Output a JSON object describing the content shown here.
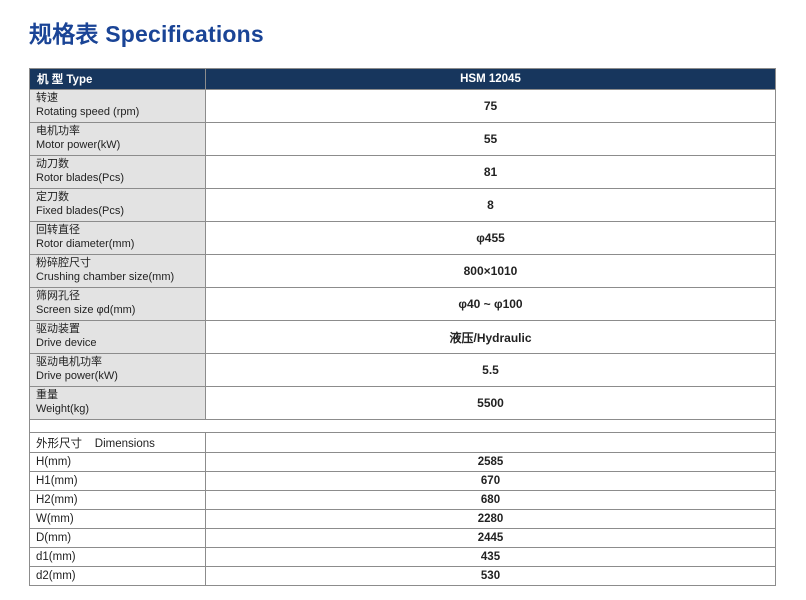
{
  "title": "规格表 Specifications",
  "colors": {
    "title_color": "#1a4496",
    "header_bg": "#17365d",
    "label_bg": "#e3e3e3",
    "border_color": "#8c8c8c"
  },
  "table": {
    "type_header": "机  型 Type",
    "model": "HSM 12045",
    "spec_rows": [
      {
        "label_cn": "转速",
        "label_en": "Rotating speed (rpm)",
        "value": "75"
      },
      {
        "label_cn": "电机功率",
        "label_en": "Motor power(kW)",
        "value": "55"
      },
      {
        "label_cn": "动刀数",
        "label_en": "Rotor blades(Pcs)",
        "value": "81"
      },
      {
        "label_cn": "定刀数",
        "label_en": "Fixed blades(Pcs)",
        "value": "8"
      },
      {
        "label_cn": "回转直径",
        "label_en": "Rotor diameter(mm)",
        "value": "φ455"
      },
      {
        "label_cn": "粉碎腔尺寸",
        "label_en": "Crushing chamber size(mm)",
        "value": "800×1010"
      },
      {
        "label_cn": "筛网孔径",
        "label_en": "Screen size φd(mm)",
        "value": "φ40 ~ φ100"
      },
      {
        "label_cn": "驱动装置",
        "label_en": "Drive device",
        "value": "液压/Hydraulic"
      },
      {
        "label_cn": "驱动电机功率",
        "label_en": "Drive power(kW)",
        "value": "5.5"
      },
      {
        "label_cn": "重量",
        "label_en": "Weight(kg)",
        "value": "5500"
      }
    ],
    "dimensions_header": "外形尺寸    Dimensions",
    "dimension_rows": [
      {
        "label": "H(mm)",
        "value": "2585"
      },
      {
        "label": "H1(mm)",
        "value": "670"
      },
      {
        "label": "H2(mm)",
        "value": "680"
      },
      {
        "label": "W(mm)",
        "value": "2280"
      },
      {
        "label": "D(mm)",
        "value": "2445"
      },
      {
        "label": "d1(mm)",
        "value": "435"
      },
      {
        "label": "d2(mm)",
        "value": "530"
      }
    ]
  }
}
